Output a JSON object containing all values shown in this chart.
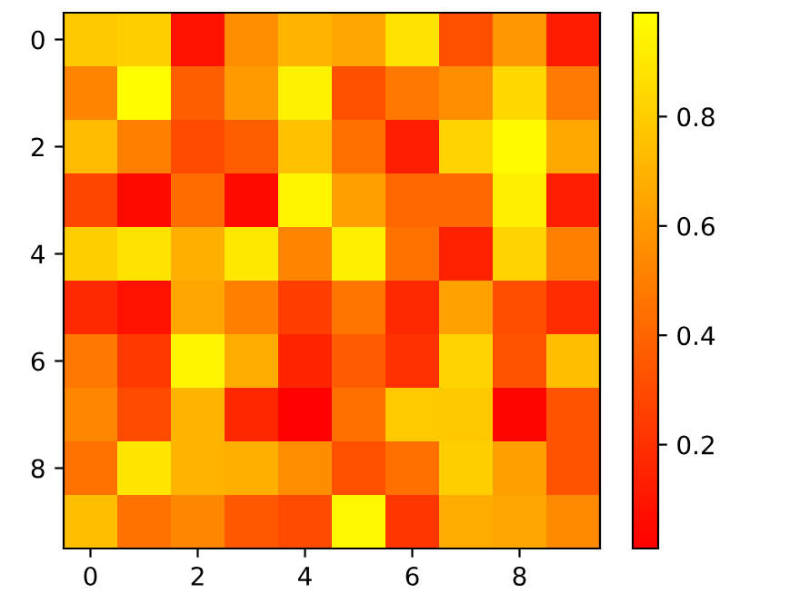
{
  "chart_data": {
    "type": "heatmap",
    "categories": [
      "0",
      null,
      "2",
      null,
      "4",
      null,
      "6",
      null,
      "8",
      null
    ],
    "y_categories": [
      "0",
      null,
      "2",
      null,
      "4",
      null,
      "6",
      null,
      "8",
      null
    ],
    "cells": [
      [
        0.78,
        0.8,
        0.08,
        0.55,
        0.7,
        0.65,
        0.88,
        0.32,
        0.59,
        0.12
      ],
      [
        0.52,
        0.98,
        0.37,
        0.6,
        0.94,
        0.32,
        0.47,
        0.56,
        0.84,
        0.48
      ],
      [
        0.73,
        0.5,
        0.3,
        0.37,
        0.75,
        0.44,
        0.13,
        0.82,
        0.97,
        0.66
      ],
      [
        0.28,
        0.05,
        0.43,
        0.05,
        0.95,
        0.62,
        0.41,
        0.41,
        0.93,
        0.13
      ],
      [
        0.8,
        0.88,
        0.68,
        0.9,
        0.52,
        0.93,
        0.45,
        0.14,
        0.82,
        0.5
      ],
      [
        0.17,
        0.08,
        0.65,
        0.5,
        0.25,
        0.46,
        0.17,
        0.63,
        0.31,
        0.18
      ],
      [
        0.47,
        0.23,
        0.95,
        0.67,
        0.15,
        0.36,
        0.2,
        0.82,
        0.33,
        0.74
      ],
      [
        0.53,
        0.3,
        0.7,
        0.16,
        0.02,
        0.44,
        0.79,
        0.78,
        0.03,
        0.33
      ],
      [
        0.45,
        0.89,
        0.7,
        0.68,
        0.55,
        0.32,
        0.44,
        0.8,
        0.62,
        0.33
      ],
      [
        0.74,
        0.45,
        0.53,
        0.35,
        0.3,
        0.96,
        0.22,
        0.67,
        0.65,
        0.54
      ]
    ],
    "clim": [
      0.01,
      0.99
    ],
    "cticks": [
      0.2,
      0.4,
      0.6,
      0.8
    ]
  }
}
